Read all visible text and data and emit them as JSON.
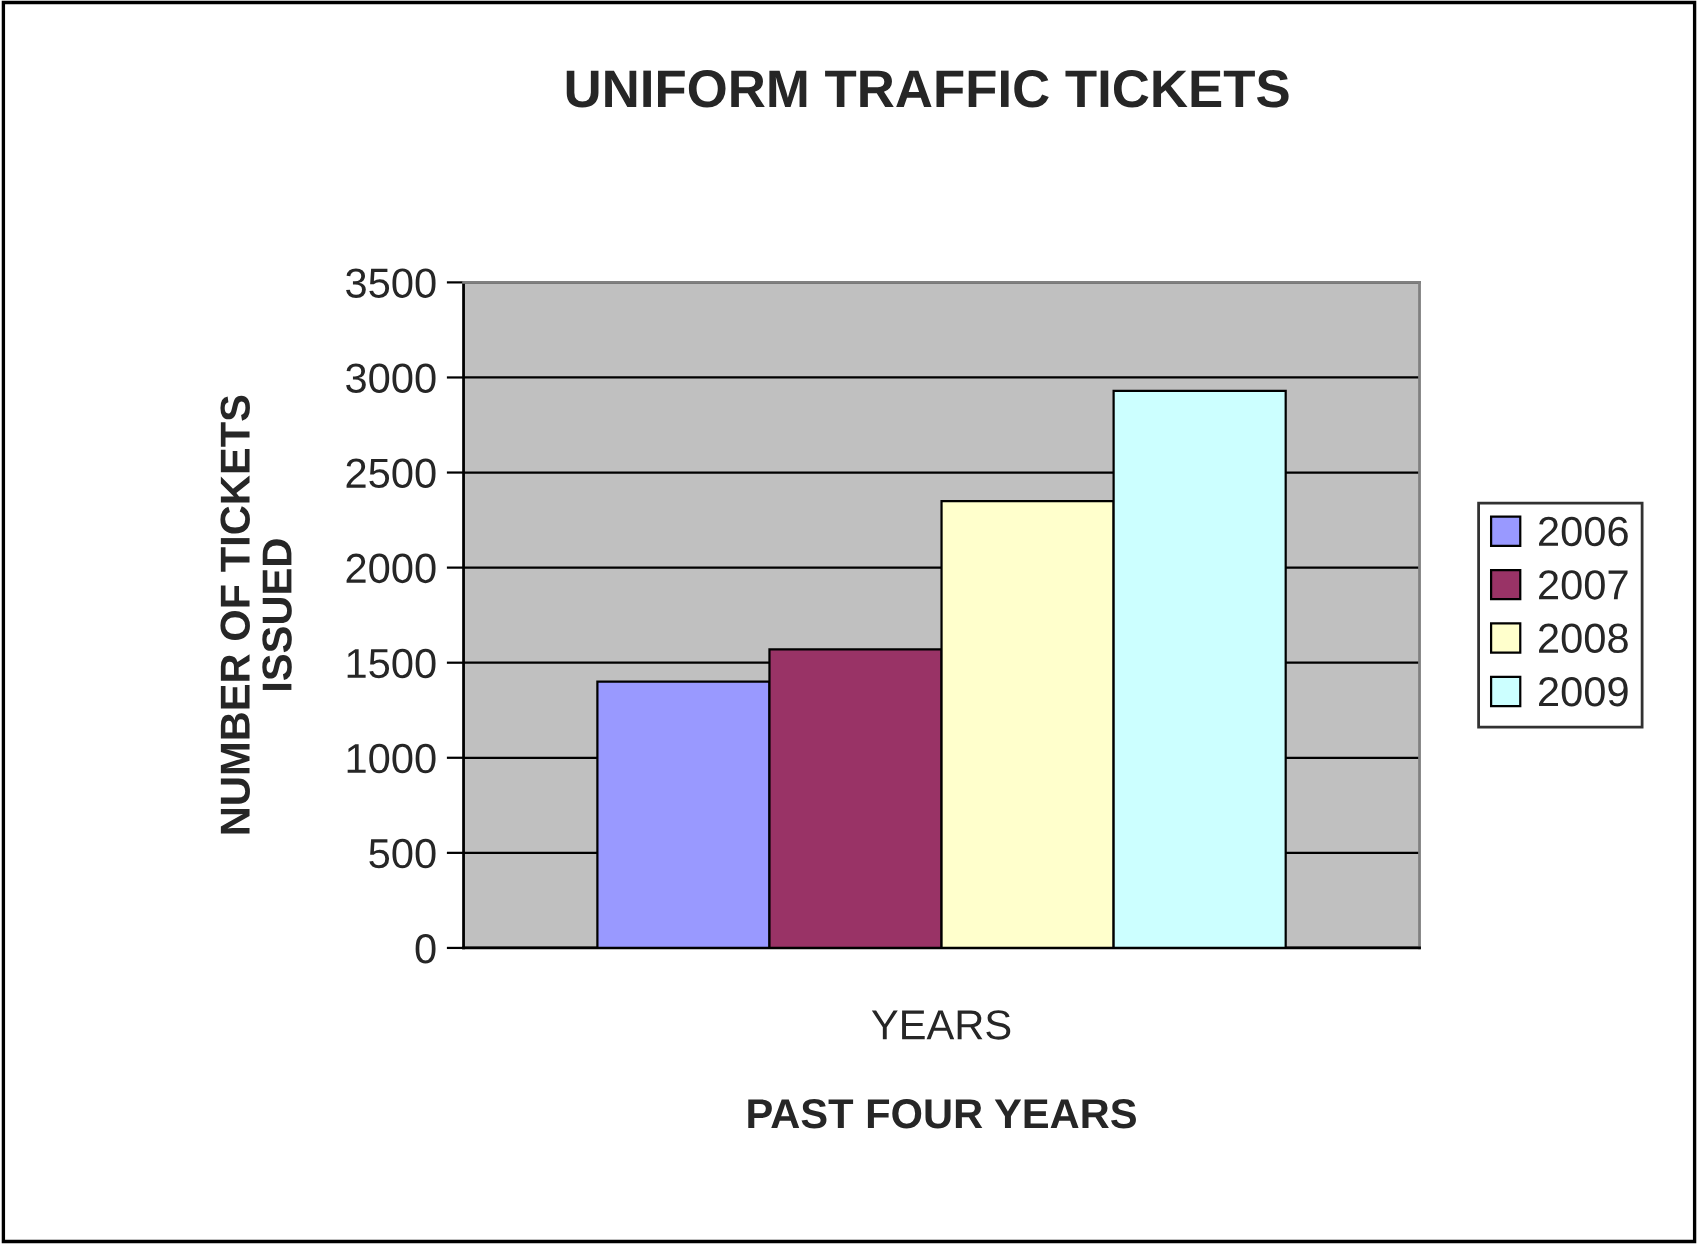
{
  "chart_data": {
    "type": "bar",
    "title": "UNIFORM TRAFFIC TICKETS",
    "xlabel": "PAST FOUR YEARS",
    "ylabel": "NUMBER OF TICKETS\nISSUED",
    "categories": [
      "YEARS"
    ],
    "series": [
      {
        "name": "2006",
        "color": "#9999ff",
        "values": [
          1400
        ]
      },
      {
        "name": "2007",
        "color": "#993366",
        "values": [
          1570
        ]
      },
      {
        "name": "2008",
        "color": "#ffffcc",
        "values": [
          2350
        ]
      },
      {
        "name": "2009",
        "color": "#ccffff",
        "values": [
          2930
        ]
      }
    ],
    "ylim": [
      0,
      3500
    ],
    "yticks": [
      0,
      500,
      1000,
      1500,
      2000,
      2500,
      3000,
      3500
    ],
    "grid": "y",
    "legend": "right"
  }
}
